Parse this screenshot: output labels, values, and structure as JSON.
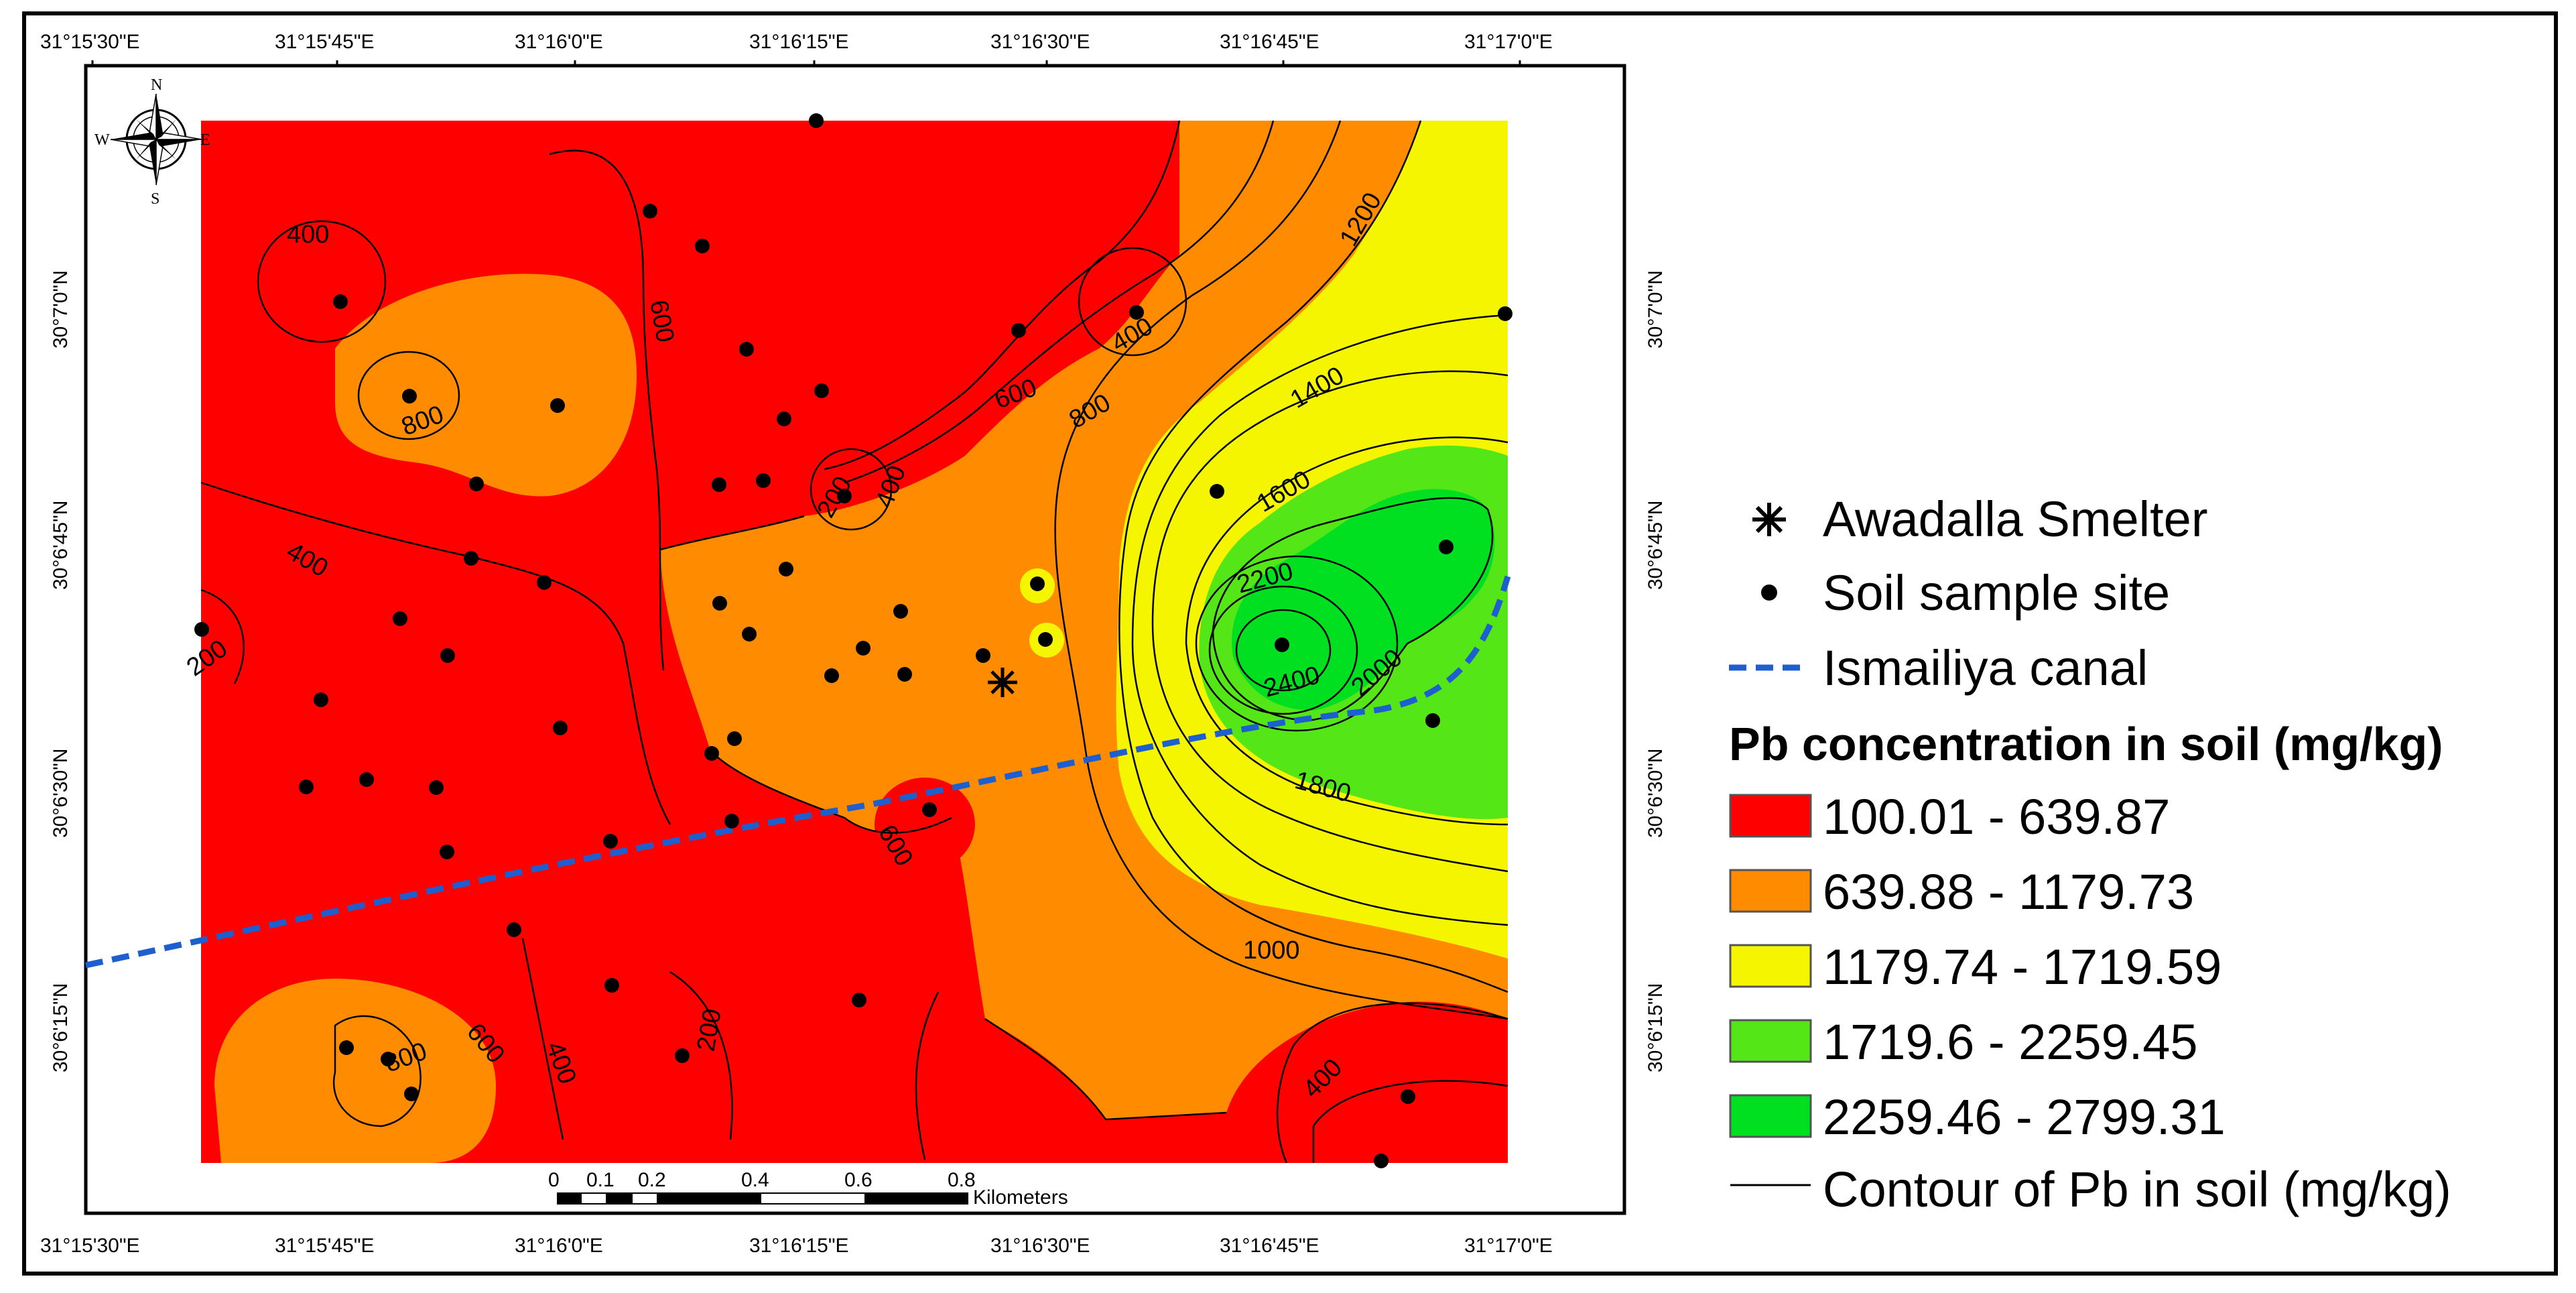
{
  "map": {
    "lon_ticks": [
      "31°15'30\"E",
      "31°15'45\"E",
      "31°16'0\"E",
      "31°16'15\"E",
      "31°16'30\"E",
      "31°16'45\"E",
      "31°17'0\"E"
    ],
    "lat_ticks": [
      "30°7'0\"N",
      "30°6'45\"N",
      "30°6'30\"N",
      "30°6'15\"N"
    ],
    "north_arrow": {
      "n": "N",
      "s": "S",
      "e": "E",
      "w": "W",
      "icon": "compass-rose-icon"
    },
    "contour_labels": [
      "400",
      "800",
      "600",
      "400",
      "200",
      "400",
      "600",
      "800",
      "1200",
      "1400",
      "1600",
      "2200",
      "2400",
      "2000",
      "1800",
      "1000",
      "400",
      "200",
      "600",
      "800",
      "600",
      "400",
      "200",
      "400"
    ],
    "scale_bar": {
      "ticks": [
        "0",
        "0.1",
        "0.2",
        "0.4",
        "0.6",
        "0.8"
      ],
      "unit": "Kilometers"
    }
  },
  "legend": {
    "smelter_label": "Awadalla Smelter",
    "sample_label": "Soil sample site",
    "canal_label": "Ismailiya canal",
    "title": "Pb concentration in soil (mg/kg)",
    "classes": [
      {
        "label": "100.01 - 639.87",
        "color": "#ff0000"
      },
      {
        "label": "639.88 - 1179.73",
        "color": "#ff8c00"
      },
      {
        "label": "1179.74 - 1719.59",
        "color": "#f5f500"
      },
      {
        "label": "1719.6 - 2259.45",
        "color": "#55e617"
      },
      {
        "label": "2259.46 - 2799.31",
        "color": "#00e020"
      }
    ],
    "contour_label": "Contour of Pb in soil (mg/kg)"
  }
}
